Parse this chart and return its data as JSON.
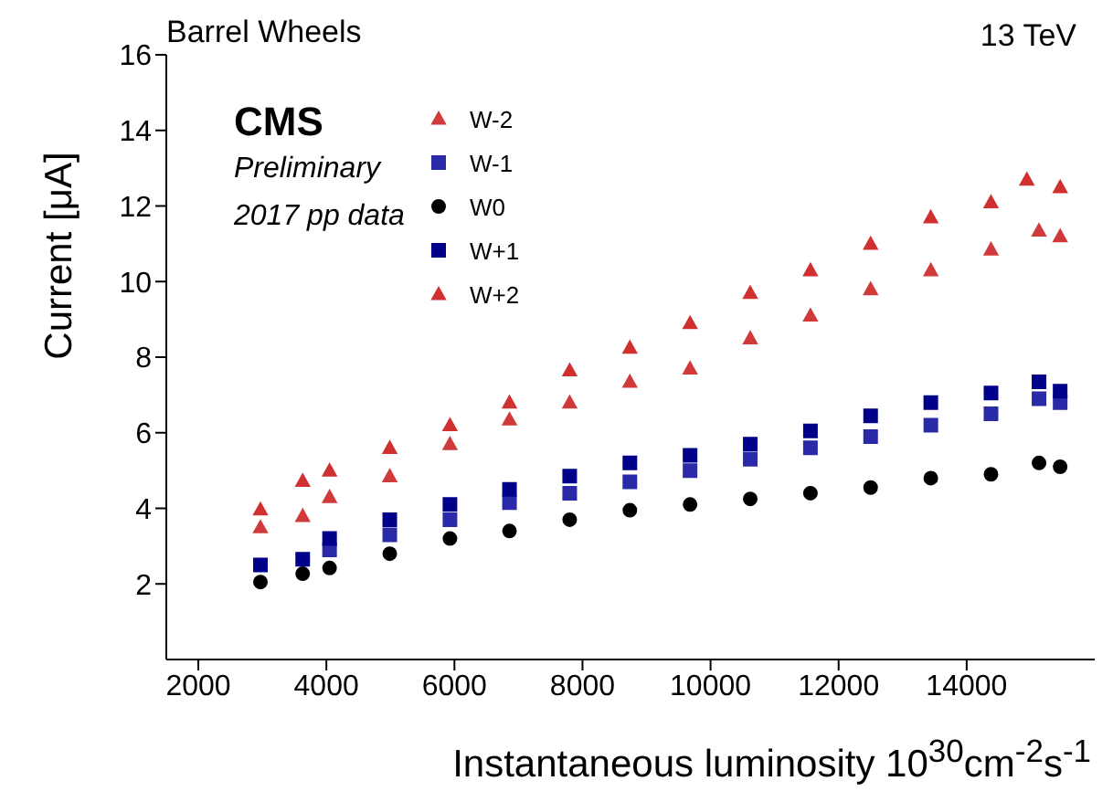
{
  "chart_data": {
    "type": "scatter",
    "title": "Barrel Wheels",
    "xlabel": "Instantaneous luminosity 10$^{30}$cm$^{-2}$s$^{-1}$",
    "ylabel": "Current [μA]",
    "annotations": [
      "13 TeV",
      "CMS",
      "Preliminary",
      "2017 pp data"
    ],
    "xlim": [
      1500,
      16000
    ],
    "xticks": [
      2000,
      4000,
      6000,
      8000,
      10000,
      12000,
      14000
    ],
    "ylim": [
      0,
      16
    ],
    "yticks": [
      2,
      4,
      6,
      8,
      10,
      12,
      14,
      16
    ],
    "grid": false,
    "legend": "top",
    "series": [
      {
        "name": "W-2",
        "color": "#d03a3a",
        "marker": "triangle",
        "x": [
          2970,
          3630,
          4050,
          4990,
          5930,
          6860,
          7800,
          8740,
          9680,
          10620,
          11560,
          12500,
          13440,
          14380,
          15130,
          15460
        ],
        "values": [
          3.5,
          3.8,
          4.3,
          4.85,
          5.7,
          6.35,
          6.8,
          7.35,
          7.7,
          8.5,
          9.1,
          9.8,
          10.3,
          10.85,
          11.35,
          11.2
        ]
      },
      {
        "name": "W-1",
        "color": "#2a2aa8",
        "marker": "square",
        "x": [
          4050,
          4990,
          5930,
          6860,
          7800,
          8740,
          9680,
          10620,
          11560,
          12500,
          13440,
          14380,
          15130,
          15460
        ],
        "values": [
          2.9,
          3.3,
          3.7,
          4.15,
          4.4,
          4.7,
          5.0,
          5.3,
          5.6,
          5.9,
          6.2,
          6.5,
          6.9,
          6.8
        ]
      },
      {
        "name": "W0",
        "color": "#000000",
        "marker": "circle",
        "x": [
          2970,
          3630,
          4050,
          4990,
          5930,
          6860,
          7800,
          8740,
          9680,
          10620,
          11560,
          12500,
          13440,
          14380,
          15130,
          15460
        ],
        "values": [
          2.05,
          2.27,
          2.42,
          2.8,
          3.2,
          3.4,
          3.7,
          3.95,
          4.1,
          4.25,
          4.4,
          4.55,
          4.8,
          4.9,
          5.2,
          5.1
        ]
      },
      {
        "name": "W+1",
        "color": "#00008b",
        "marker": "square",
        "x": [
          2970,
          3630,
          4050,
          4990,
          5930,
          6860,
          7800,
          8740,
          9680,
          10620,
          11560,
          12500,
          13440,
          14380,
          15130,
          15460
        ],
        "values": [
          2.5,
          2.65,
          3.2,
          3.7,
          4.1,
          4.5,
          4.85,
          5.2,
          5.4,
          5.7,
          6.05,
          6.45,
          6.8,
          7.05,
          7.35,
          7.1
        ]
      },
      {
        "name": "W+2",
        "color": "#d03030",
        "marker": "triangle",
        "x": [
          2970,
          3630,
          4050,
          4990,
          5930,
          6860,
          7800,
          8740,
          9680,
          10620,
          11560,
          12500,
          13440,
          14380,
          14940,
          15460
        ],
        "values": [
          3.97,
          4.73,
          5.0,
          5.6,
          6.2,
          6.8,
          7.65,
          8.25,
          8.9,
          9.7,
          10.3,
          11.0,
          11.7,
          12.1,
          12.7,
          12.5
        ]
      }
    ]
  }
}
